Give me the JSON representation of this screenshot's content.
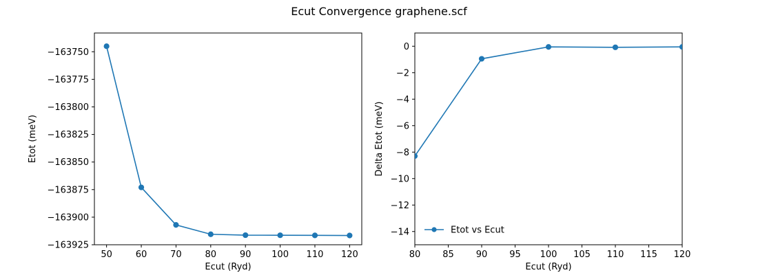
{
  "figure": {
    "title": "Ecut Convergence graphene.scf"
  },
  "chart_data": [
    {
      "type": "line",
      "xlabel": "Ecut (Ryd)",
      "ylabel": "Etot (meV)",
      "xlim": [
        46.5,
        123.5
      ],
      "ylim": [
        -163925,
        -163733
      ],
      "xticks": [
        50,
        60,
        70,
        80,
        90,
        100,
        110,
        120
      ],
      "yticks": [
        -163925,
        -163900,
        -163875,
        -163850,
        -163825,
        -163800,
        -163775,
        -163750
      ],
      "grid": false,
      "series": [
        {
          "color": "#1f77b4",
          "x": [
            50,
            60,
            70,
            80,
            90,
            100,
            110,
            120
          ],
          "y": [
            -163745,
            -163873,
            -163907,
            -163915.5,
            -163916.3,
            -163916.4,
            -163916.5,
            -163916.6
          ]
        }
      ]
    },
    {
      "type": "line",
      "xlabel": "Ecut (Ryd)",
      "ylabel": "Delta Etot (meV)",
      "xlim": [
        80,
        120
      ],
      "ylim": [
        -15,
        1
      ],
      "xticks": [
        80,
        85,
        90,
        95,
        100,
        105,
        110,
        115,
        120
      ],
      "yticks": [
        -14,
        -12,
        -10,
        -8,
        -6,
        -4,
        -2,
        0
      ],
      "grid": false,
      "legend": {
        "position": "lower-left",
        "frame": false
      },
      "series": [
        {
          "name": "Etot vs Ecut",
          "color": "#1f77b4",
          "x": [
            80,
            90,
            100,
            110,
            120
          ],
          "y": [
            -8.3,
            -0.95,
            -0.05,
            -0.08,
            -0.05
          ]
        }
      ]
    }
  ]
}
